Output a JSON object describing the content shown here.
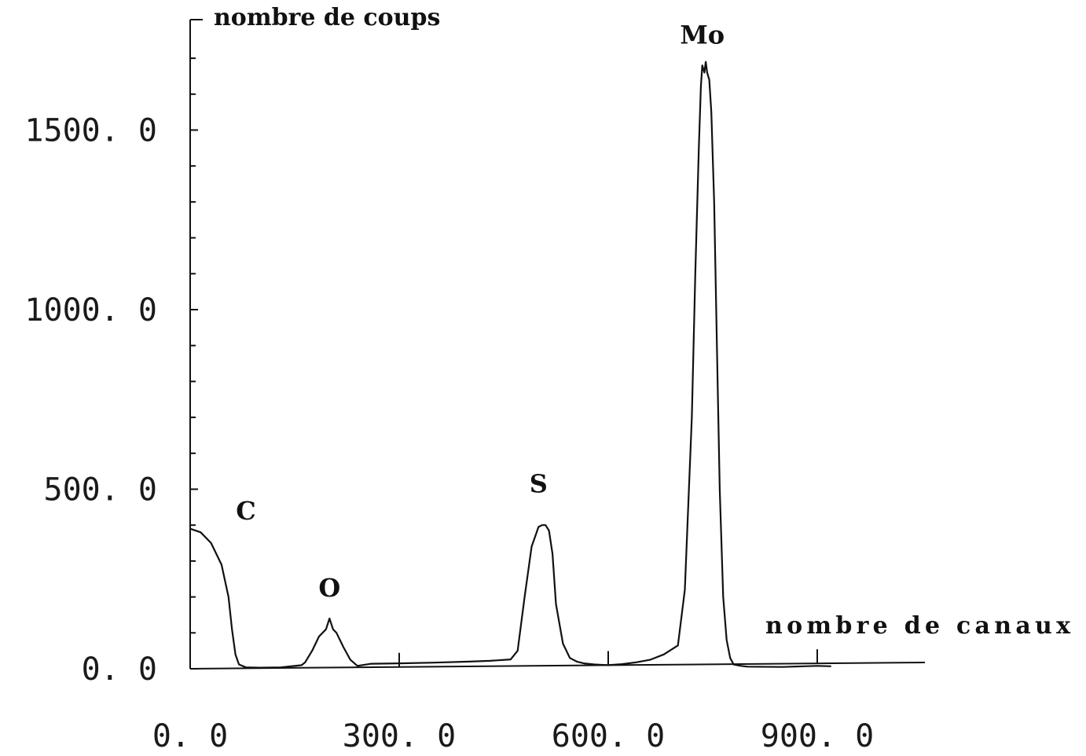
{
  "chart_data": {
    "type": "line",
    "ylabel": "nombre de coups",
    "xlabel": "nombre de canaux",
    "xlim": [
      0,
      1050
    ],
    "ylim": [
      0,
      1750
    ],
    "x_ticks": [
      0,
      300,
      600,
      900
    ],
    "x_tick_labels": [
      "0. 0",
      "300. 0",
      "600. 0",
      "900. 0"
    ],
    "y_ticks": [
      0,
      500,
      1000,
      1500
    ],
    "y_tick_labels": [
      "0. 0",
      "500. 0",
      "1000. 0",
      "1500. 0"
    ],
    "y_minor_step": 100,
    "grid": false,
    "series": [
      {
        "x": [
          0,
          15,
          30,
          45,
          55,
          60,
          65,
          70,
          80,
          100,
          130,
          160,
          165,
          175,
          185,
          195,
          200,
          205,
          210,
          220,
          230,
          240,
          260,
          300,
          350,
          400,
          430,
          460,
          470,
          480,
          490,
          500,
          505,
          510,
          515,
          520,
          525,
          535,
          545,
          555,
          565,
          580,
          600,
          620,
          640,
          660,
          680,
          700,
          710,
          720,
          725,
          730,
          733,
          735,
          738,
          740,
          742,
          745,
          748,
          752,
          756,
          760,
          765,
          770,
          775,
          780,
          790,
          800,
          850,
          900,
          920
        ],
        "y": [
          390,
          380,
          350,
          290,
          200,
          110,
          40,
          12,
          4,
          3,
          4,
          10,
          18,
          50,
          90,
          110,
          140,
          110,
          100,
          60,
          25,
          8,
          14,
          15,
          17,
          20,
          22,
          26,
          50,
          200,
          340,
          395,
          400,
          400,
          385,
          320,
          180,
          70,
          30,
          20,
          15,
          12,
          10,
          13,
          18,
          25,
          40,
          65,
          220,
          700,
          1100,
          1450,
          1620,
          1680,
          1660,
          1690,
          1660,
          1640,
          1550,
          1300,
          900,
          500,
          200,
          80,
          30,
          12,
          8,
          6,
          5,
          8,
          7
        ]
      }
    ],
    "annotations": [
      {
        "text": "C",
        "x": 80,
        "y": 440
      },
      {
        "text": "O",
        "x": 200,
        "y": 225
      },
      {
        "text": "S",
        "x": 500,
        "y": 515
      },
      {
        "text": "Mo",
        "x": 735,
        "y": 1765
      }
    ],
    "colors": {
      "line": "#111111",
      "axis": "#111111",
      "background": "#ffffff"
    }
  }
}
